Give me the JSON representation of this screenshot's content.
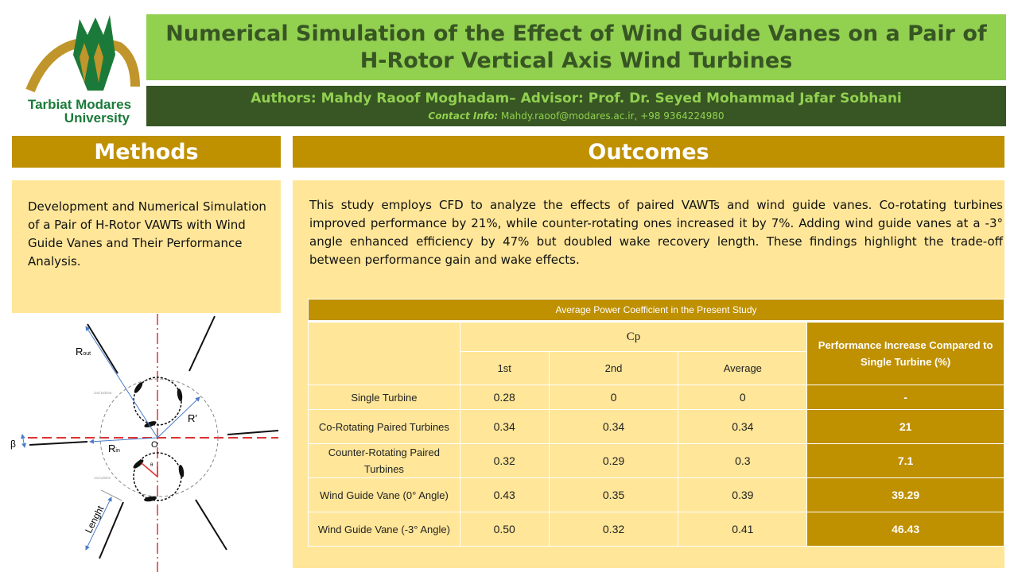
{
  "logo": {
    "text_line1": "Tarbiat Modares",
    "text_line2": "University",
    "colors": {
      "green": "#1b7a3a",
      "gold": "#c0952b"
    }
  },
  "header": {
    "title": "Numerical Simulation of the Effect of Wind Guide Vanes on a Pair of H-Rotor Vertical Axis Wind Turbines",
    "authors": "Authors: Mahdy Raoof Moghadam– Advisor: Prof. Dr. Seyed Mohammad Jafar Sobhani",
    "contact_label": "Contact Info:",
    "contact_value": " Mahdy.raoof@modares.ac.ir, +98 9364224980"
  },
  "methods": {
    "heading": "Methods",
    "text": "Development and Numerical Simulation of a Pair of H-Rotor VAWTs with Wind Guide Vanes and Their Performance Analysis."
  },
  "diagram": {
    "labels": {
      "r_out": "R",
      "r_out_sub": "out",
      "r_prime": "R′",
      "r_in": "R",
      "r_in_sub": "in",
      "origin": "O",
      "beta": "β",
      "theta": "θ",
      "length": "Lenght",
      "second_turbine": "2nd turbine",
      "first_turbine": "1st turbine"
    }
  },
  "outcomes": {
    "heading": "Outcomes",
    "text": "This study employs CFD to analyze the effects of paired VAWTs and wind guide vanes. Co-rotating turbines improved performance by 21%, while counter-rotating ones increased it by 7%. Adding wind guide vanes at a -3° angle enhanced efficiency by 47% but doubled wake recovery length. These findings highlight the trade-off between performance gain and wake effects."
  },
  "table": {
    "title": "Average Power Coefficient in the Present Study",
    "cp_header": "Cp",
    "sub_headers": [
      "1st",
      "2nd",
      "Average"
    ],
    "perf_header": "Performance Increase Compared to Single Turbine (%)",
    "rows": [
      {
        "label": "Single Turbine",
        "first": "0.28",
        "second": "0",
        "average": "0",
        "perf": "-"
      },
      {
        "label": "Co-Rotating Paired Turbines",
        "first": "0.34",
        "second": "0.34",
        "average": "0.34",
        "perf": "21"
      },
      {
        "label": "Counter-Rotating Paired Turbines",
        "first": "0.32",
        "second": "0.29",
        "average": "0.3",
        "perf": "7.1"
      },
      {
        "label": "Wind Guide Vane (0° Angle)",
        "first": "0.43",
        "second": "0.35",
        "average": "0.39",
        "perf": "39.29"
      },
      {
        "label": "Wind Guide Vane (-3° Angle)",
        "first": "0.50",
        "second": "0.32",
        "average": "0.41",
        "perf": "46.43"
      }
    ]
  },
  "colors": {
    "light_green": "#92d050",
    "dark_green": "#375623",
    "gold": "#bf9000",
    "light_yellow": "#ffe699"
  }
}
